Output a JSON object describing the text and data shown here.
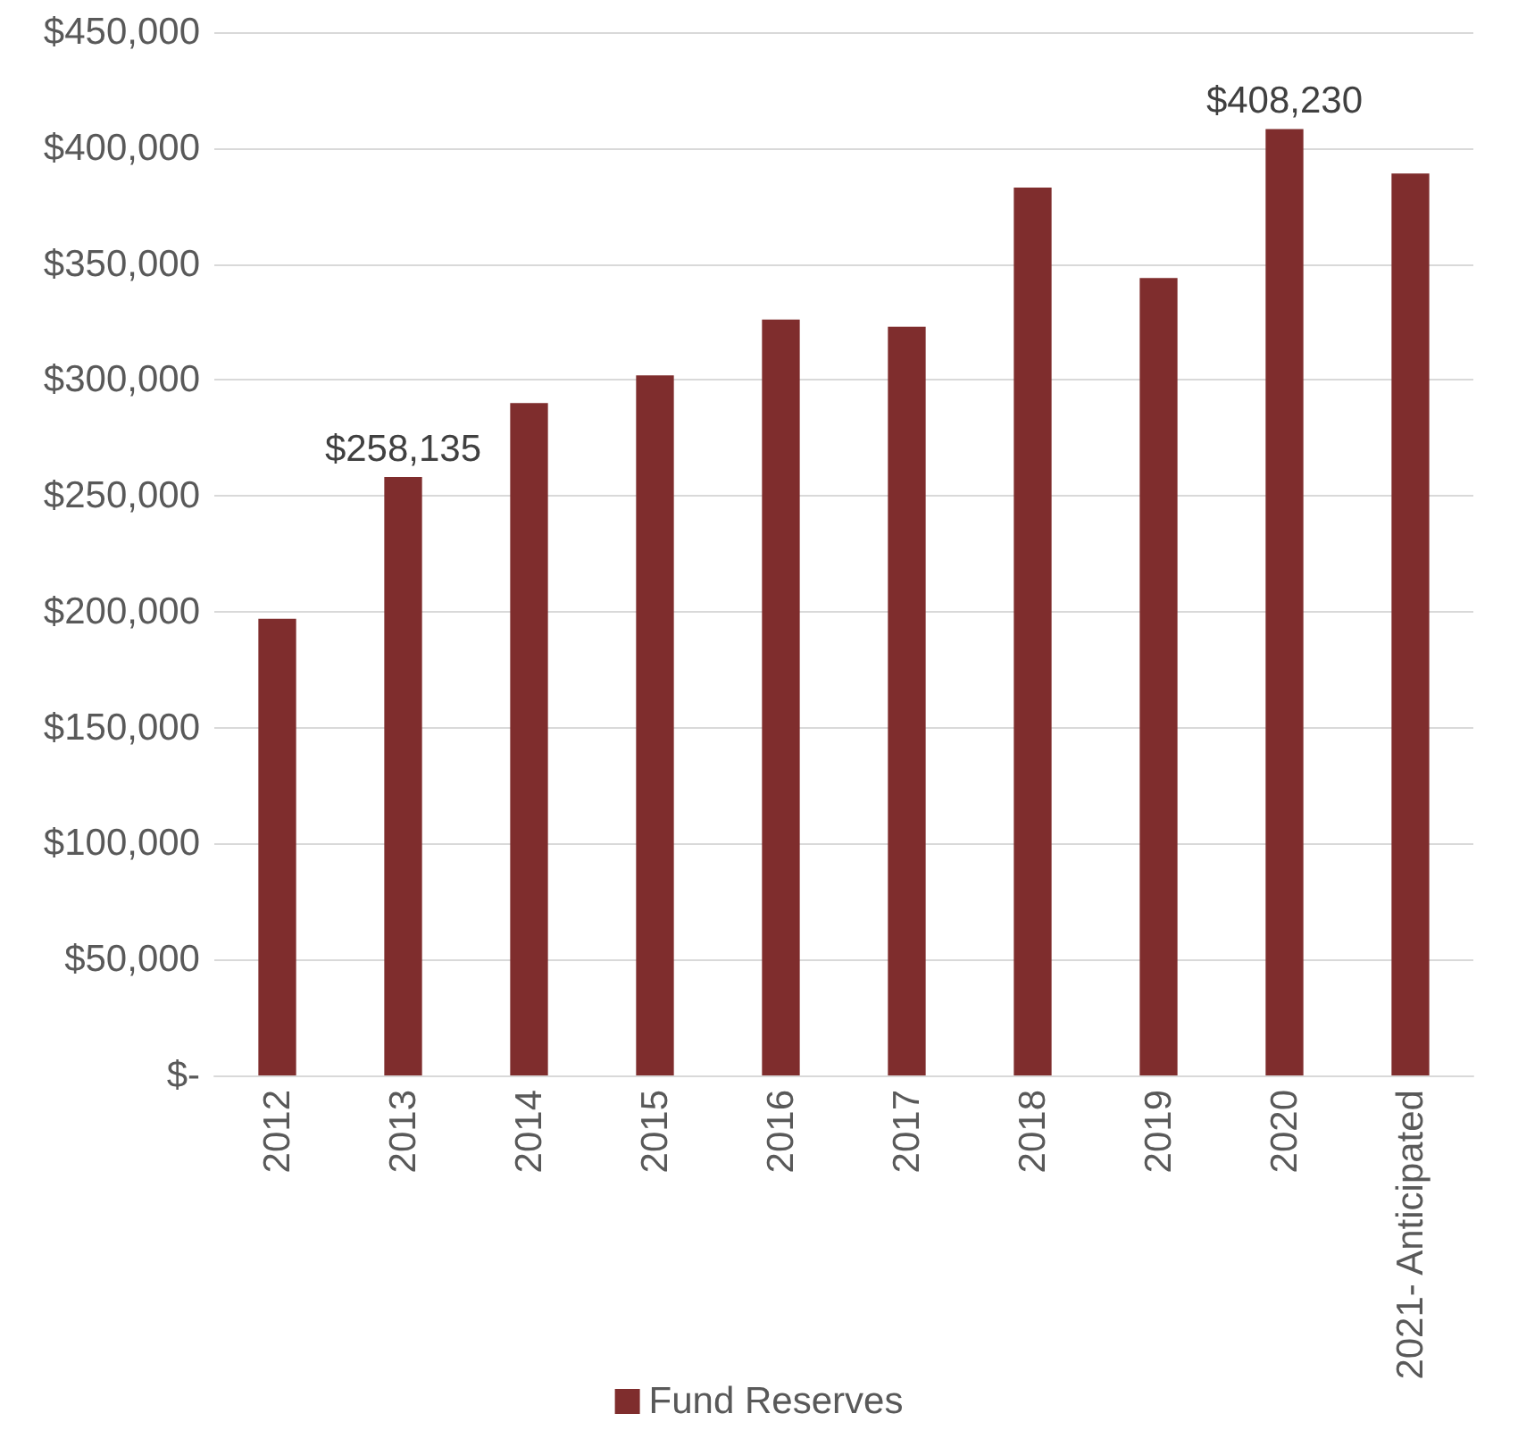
{
  "chart_data": {
    "type": "bar",
    "categories": [
      "2012",
      "2013",
      "2014",
      "2015",
      "2016",
      "2017",
      "2018",
      "2019",
      "2020",
      "2021- Anticipated"
    ],
    "series": [
      {
        "name": "Fund Reserves",
        "color": "#7f2d2d",
        "values": [
          197000,
          258135,
          290000,
          302000,
          326000,
          323000,
          383000,
          344000,
          408230,
          389000
        ],
        "value_labels": [
          null,
          "$258,135",
          null,
          null,
          null,
          null,
          null,
          null,
          "$408,230",
          null
        ]
      }
    ],
    "ylim": [
      0,
      450000
    ],
    "yticks": [
      {
        "value": 0,
        "label": "$-"
      },
      {
        "value": 50000,
        "label": "$50,000"
      },
      {
        "value": 100000,
        "label": "$100,000"
      },
      {
        "value": 150000,
        "label": "$150,000"
      },
      {
        "value": 200000,
        "label": "$200,000"
      },
      {
        "value": 250000,
        "label": "$250,000"
      },
      {
        "value": 300000,
        "label": "$300,000"
      },
      {
        "value": 350000,
        "label": "$350,000"
      },
      {
        "value": 400000,
        "label": "$400,000"
      },
      {
        "value": 450000,
        "label": "$450,000"
      }
    ],
    "grid": "y",
    "legend": "bottom"
  }
}
